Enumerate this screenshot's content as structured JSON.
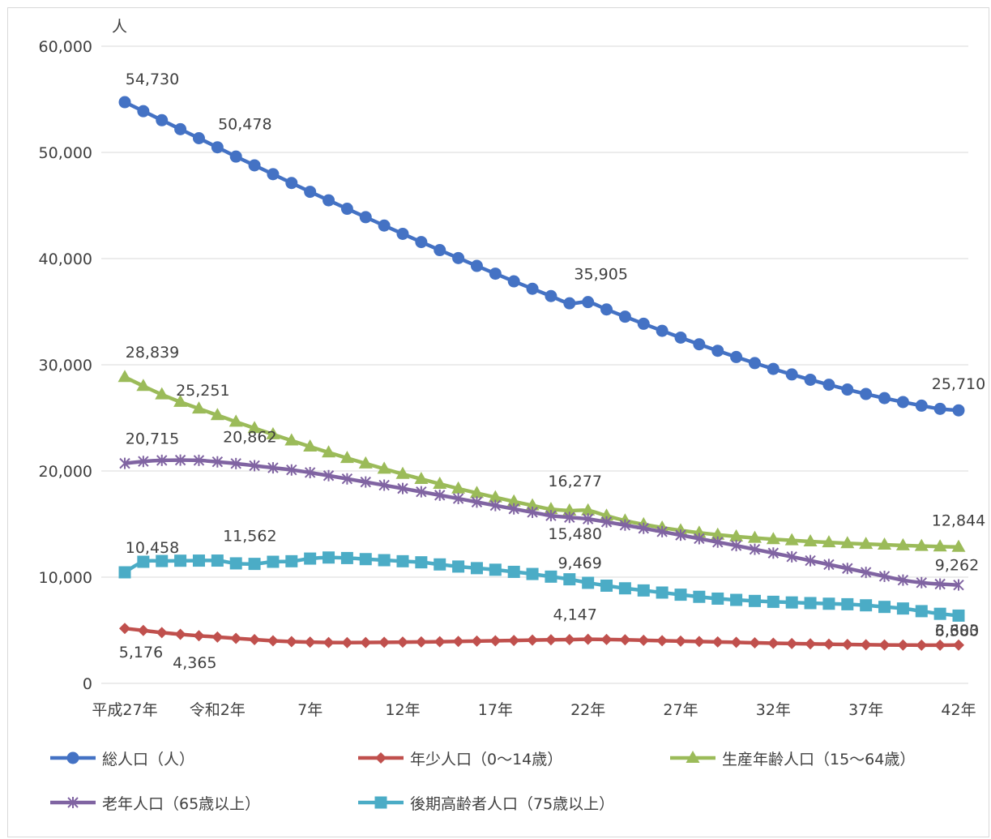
{
  "chart_data": {
    "type": "line",
    "y_unit": "人",
    "ylim": [
      0,
      60000
    ],
    "y_ticks": [
      0,
      10000,
      20000,
      30000,
      40000,
      50000,
      60000
    ],
    "y_tick_labels": [
      "0",
      "10,000",
      "20,000",
      "30,000",
      "40,000",
      "50,000",
      "60,000"
    ],
    "x_tick_labels": [
      "平成27年",
      "令和2年",
      "7年",
      "12年",
      "17年",
      "22年",
      "27年",
      "32年",
      "37年",
      "42年"
    ],
    "x_tick_index": [
      0,
      5,
      10,
      15,
      20,
      25,
      30,
      35,
      40,
      45
    ],
    "grid": true,
    "legend_position": "bottom",
    "series": [
      {
        "name": "総人口（人）",
        "color": "#4472C4",
        "marker": "circle",
        "values": [
          54730,
          53882,
          53033,
          52185,
          51336,
          50478,
          49608,
          48780,
          47950,
          47120,
          46290,
          45490,
          44690,
          43900,
          43110,
          42330,
          41560,
          40800,
          40050,
          39310,
          38580,
          37860,
          37160,
          36470,
          35790,
          35905,
          35210,
          34530,
          33860,
          33200,
          32560,
          31930,
          31320,
          30730,
          30160,
          29610,
          29090,
          28590,
          28120,
          27670,
          27250,
          26860,
          26490,
          26150,
          25850,
          25710
        ],
        "labels": [
          {
            "index": 0,
            "text": "54,730"
          },
          {
            "index": 5,
            "text": "50,478"
          },
          {
            "index": 25,
            "text": "35,905"
          },
          {
            "index": 45,
            "text": "25,710"
          }
        ]
      },
      {
        "name": "年少人口（0〜14歳）",
        "color": "#C0504D",
        "marker": "diamond",
        "values": [
          5176,
          4980,
          4780,
          4620,
          4480,
          4365,
          4240,
          4120,
          4010,
          3930,
          3880,
          3850,
          3840,
          3850,
          3860,
          3880,
          3900,
          3920,
          3950,
          3980,
          4010,
          4040,
          4070,
          4100,
          4120,
          4147,
          4130,
          4100,
          4060,
          4020,
          3980,
          3940,
          3900,
          3860,
          3820,
          3780,
          3750,
          3720,
          3690,
          3660,
          3640,
          3620,
          3610,
          3600,
          3600,
          3603
        ],
        "labels": [
          {
            "index": 0,
            "text": "5,176"
          },
          {
            "index": 5,
            "text": "4,365"
          },
          {
            "index": 25,
            "text": "4,147"
          },
          {
            "index": 45,
            "text": "3,603"
          }
        ]
      },
      {
        "name": "生産年齢人口（15〜64歳）",
        "color": "#9BBB59",
        "marker": "triangle",
        "values": [
          28839,
          28000,
          27200,
          26500,
          25870,
          25251,
          24630,
          24030,
          23440,
          22860,
          22290,
          21740,
          21210,
          20700,
          20200,
          19710,
          19240,
          18780,
          18340,
          17920,
          17510,
          17120,
          16750,
          16400,
          16270,
          16277,
          15780,
          15320,
          14970,
          14660,
          14400,
          14180,
          13990,
          13830,
          13690,
          13570,
          13460,
          13360,
          13270,
          13190,
          13120,
          13050,
          12990,
          12930,
          12880,
          12844
        ],
        "labels": [
          {
            "index": 0,
            "text": "28,839"
          },
          {
            "index": 5,
            "text": "25,251"
          },
          {
            "index": 25,
            "text": "16,277"
          },
          {
            "index": 45,
            "text": "12,844"
          }
        ]
      },
      {
        "name": "老年人口（65歳以上）",
        "color": "#8064A2",
        "marker": "star",
        "values": [
          20715,
          20900,
          21000,
          21020,
          21000,
          20862,
          20700,
          20500,
          20300,
          20100,
          19850,
          19560,
          19260,
          18960,
          18660,
          18350,
          18040,
          17720,
          17400,
          17070,
          16750,
          16430,
          16110,
          15790,
          15630,
          15480,
          15200,
          14900,
          14600,
          14280,
          13960,
          13630,
          13300,
          12970,
          12620,
          12270,
          11920,
          11560,
          11190,
          10820,
          10450,
          10080,
          9720,
          9480,
          9350,
          9262
        ],
        "labels": [
          {
            "index": 0,
            "text": "20,715"
          },
          {
            "index": 5,
            "text": "20,862"
          },
          {
            "index": 25,
            "text": "15,480"
          },
          {
            "index": 45,
            "text": "9,262"
          }
        ]
      },
      {
        "name": "後期高齢者人口（75歳以上）",
        "color": "#4BACC6",
        "marker": "square",
        "values": [
          10458,
          11450,
          11520,
          11550,
          11560,
          11562,
          11300,
          11250,
          11450,
          11500,
          11750,
          11850,
          11800,
          11700,
          11600,
          11500,
          11400,
          11200,
          11000,
          10850,
          10700,
          10500,
          10300,
          10050,
          9800,
          9469,
          9200,
          8950,
          8750,
          8550,
          8350,
          8150,
          7980,
          7860,
          7760,
          7680,
          7620,
          7560,
          7500,
          7450,
          7350,
          7200,
          7050,
          6800,
          6550,
          6380
        ],
        "labels": [
          {
            "index": 0,
            "text": "10,458"
          },
          {
            "index": 5,
            "text": "11,562"
          },
          {
            "index": 25,
            "text": "9,469"
          },
          {
            "index": 45,
            "text": "6,380"
          }
        ]
      }
    ]
  }
}
